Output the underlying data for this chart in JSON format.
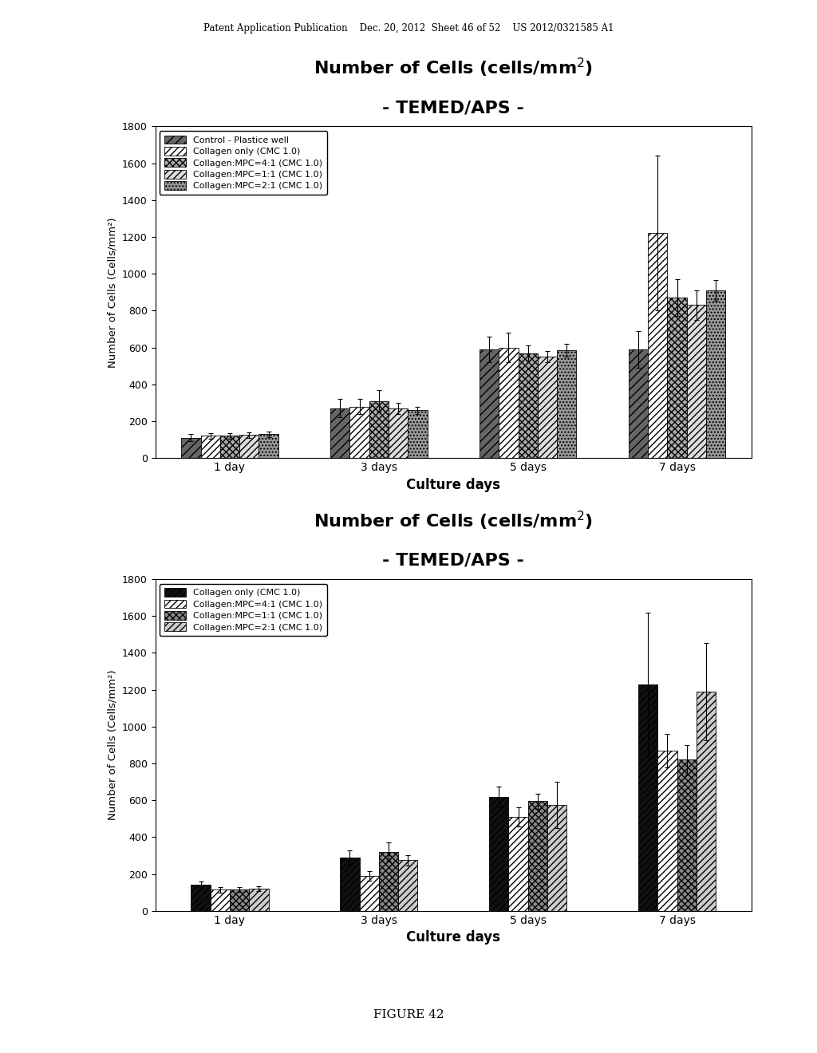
{
  "top_chart": {
    "title_line1": "Number of Cells (cells/mm",
    "title_line2": "- TEMED/APS -",
    "ylabel": "Number of Cells (Cells/mm²)",
    "xlabel": "Culture days",
    "ylim": [
      0,
      1800
    ],
    "yticks": [
      0,
      200,
      400,
      600,
      800,
      1000,
      1200,
      1400,
      1600,
      1800
    ],
    "categories": [
      "1 day",
      "3 days",
      "5 days",
      "7 days"
    ],
    "series": [
      {
        "label": "Control - Plastice well",
        "values": [
          110,
          270,
          590,
          590
        ],
        "errors": [
          20,
          50,
          70,
          100
        ],
        "hatch": "///",
        "facecolor": "#666666",
        "edgecolor": "#000000"
      },
      {
        "label": "Collagen only (CMC 1.0)",
        "values": [
          120,
          280,
          600,
          1220
        ],
        "errors": [
          15,
          40,
          80,
          420
        ],
        "hatch": "////",
        "facecolor": "#ffffff",
        "edgecolor": "#000000"
      },
      {
        "label": "Collagen:MPC=4:1 (CMC 1.0)",
        "values": [
          120,
          310,
          570,
          870
        ],
        "errors": [
          15,
          60,
          40,
          100
        ],
        "hatch": "xxxx",
        "facecolor": "#aaaaaa",
        "edgecolor": "#000000"
      },
      {
        "label": "Collagen:MPC=1:1 (CMC 1.0)",
        "values": [
          125,
          270,
          550,
          830
        ],
        "errors": [
          15,
          30,
          30,
          80
        ],
        "hatch": "////",
        "facecolor": "#dddddd",
        "edgecolor": "#000000"
      },
      {
        "label": "Collagen:MPC=2:1 (CMC 1.0)",
        "values": [
          130,
          260,
          585,
          910
        ],
        "errors": [
          15,
          20,
          35,
          55
        ],
        "hatch": "....",
        "facecolor": "#999999",
        "edgecolor": "#000000"
      }
    ]
  },
  "bottom_chart": {
    "title_line1": "Number of Cells (cells/mm",
    "title_line2": "- TEMED/APS -",
    "ylabel": "Number of Cells (Cells/mm²)",
    "xlabel": "Culture days",
    "ylim": [
      0,
      1800
    ],
    "yticks": [
      0,
      200,
      400,
      600,
      800,
      1000,
      1200,
      1400,
      1600,
      1800
    ],
    "categories": [
      "1 day",
      "3 days",
      "5 days",
      "7 days"
    ],
    "series": [
      {
        "label": "Collagen only (CMC 1.0)",
        "values": [
          140,
          290,
          620,
          1230
        ],
        "errors": [
          20,
          40,
          55,
          390
        ],
        "hatch": "////",
        "facecolor": "#111111",
        "edgecolor": "#000000"
      },
      {
        "label": "Collagen:MPC=4:1 (CMC 1.0)",
        "values": [
          115,
          190,
          510,
          870
        ],
        "errors": [
          15,
          25,
          50,
          90
        ],
        "hatch": "////",
        "facecolor": "#ffffff",
        "edgecolor": "#000000"
      },
      {
        "label": "Collagen:MPC=1:1 (CMC 1.0)",
        "values": [
          115,
          320,
          595,
          820
        ],
        "errors": [
          12,
          50,
          40,
          80
        ],
        "hatch": "xxxx",
        "facecolor": "#888888",
        "edgecolor": "#000000"
      },
      {
        "label": "Collagen:MPC=2:1 (CMC 1.0)",
        "values": [
          120,
          275,
          575,
          1190
        ],
        "errors": [
          12,
          28,
          125,
          265
        ],
        "hatch": "////",
        "facecolor": "#cccccc",
        "edgecolor": "#000000"
      }
    ]
  },
  "header_text": "Patent Application Publication    Dec. 20, 2012  Sheet 46 of 52    US 2012/0321585 A1",
  "footer_text": "FIGURE 42",
  "bg_color": "#ffffff"
}
